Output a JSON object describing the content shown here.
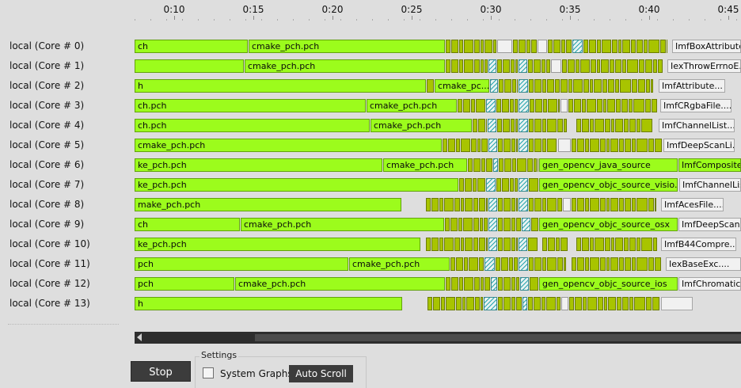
{
  "timeline": {
    "ticks": [
      "0:10",
      "0:15",
      "0:20",
      "0:25",
      "0:30",
      "0:35",
      "0:40",
      "0:45"
    ],
    "lanes": [
      {
        "label": "local (Core # 0)",
        "segments": [
          {
            "k": "big",
            "s": 0,
            "e": 143,
            "t": "ch"
          },
          {
            "k": "big",
            "s": 144,
            "e": 392,
            "t": "cmake_pch.pch"
          },
          {
            "k": "med",
            "s": 393,
            "e": 457
          },
          {
            "k": "idle",
            "s": 458,
            "e": 477
          },
          {
            "k": "med",
            "s": 478,
            "e": 508
          },
          {
            "k": "idle",
            "s": 509,
            "e": 521
          },
          {
            "k": "med",
            "s": 522,
            "e": 552
          },
          {
            "k": "hatch",
            "s": 553,
            "e": 566
          },
          {
            "k": "med",
            "s": 567,
            "e": 673
          },
          {
            "k": "tail",
            "s": 679,
            "e": 766,
            "t": "ImfBoxAttribute..."
          }
        ]
      },
      {
        "label": "local (Core # 1)",
        "segments": [
          {
            "k": "big",
            "s": 0,
            "e": 138
          },
          {
            "k": "big",
            "s": 139,
            "e": 392,
            "t": "cmake_pch.pch"
          },
          {
            "k": "med",
            "s": 393,
            "e": 446
          },
          {
            "k": "hatch",
            "s": 447,
            "e": 457
          },
          {
            "k": "med",
            "s": 458,
            "e": 484
          },
          {
            "k": "hatch",
            "s": 485,
            "e": 496
          },
          {
            "k": "med",
            "s": 497,
            "e": 525
          },
          {
            "k": "idle",
            "s": 526,
            "e": 539
          },
          {
            "k": "med",
            "s": 540,
            "e": 667
          },
          {
            "k": "tail",
            "s": 673,
            "e": 766,
            "t": "IexThrowErrnoE..."
          }
        ]
      },
      {
        "label": "local (Core # 2)",
        "segments": [
          {
            "k": "big",
            "s": 0,
            "e": 368,
            "t": "h"
          },
          {
            "k": "med",
            "s": 369,
            "e": 378
          },
          {
            "k": "big",
            "s": 379,
            "e": 448,
            "t": "cmake_pc..."
          },
          {
            "k": "hatch",
            "s": 449,
            "e": 459
          },
          {
            "k": "med",
            "s": 460,
            "e": 484
          },
          {
            "k": "hatch",
            "s": 485,
            "e": 497
          },
          {
            "k": "med",
            "s": 498,
            "e": 530
          },
          {
            "k": "med",
            "s": 531,
            "e": 655
          },
          {
            "k": "tail",
            "s": 662,
            "e": 746,
            "t": "ImfAttribute..."
          }
        ]
      },
      {
        "label": "local (Core # 3)",
        "segments": [
          {
            "k": "big",
            "s": 0,
            "e": 292,
            "t": "ch.pch"
          },
          {
            "k": "big",
            "s": 293,
            "e": 407,
            "t": "cmake_pch.pch"
          },
          {
            "k": "med",
            "s": 408,
            "e": 443
          },
          {
            "k": "hatch",
            "s": 444,
            "e": 456
          },
          {
            "k": "med",
            "s": 457,
            "e": 484
          },
          {
            "k": "hatch",
            "s": 485,
            "e": 498
          },
          {
            "k": "med",
            "s": 499,
            "e": 537
          },
          {
            "k": "idle",
            "s": 538,
            "e": 547
          },
          {
            "k": "med",
            "s": 548,
            "e": 660
          },
          {
            "k": "tail",
            "s": 664,
            "e": 754,
            "t": "ImfCRgbaFile...."
          }
        ]
      },
      {
        "label": "local (Core # 4)",
        "segments": [
          {
            "k": "big",
            "s": 0,
            "e": 297,
            "t": "ch.pch"
          },
          {
            "k": "big",
            "s": 298,
            "e": 426,
            "t": "cmake_pch.pch"
          },
          {
            "k": "med",
            "s": 427,
            "e": 445
          },
          {
            "k": "hatch",
            "s": 446,
            "e": 457
          },
          {
            "k": "med",
            "s": 458,
            "e": 484
          },
          {
            "k": "hatch",
            "s": 485,
            "e": 497
          },
          {
            "k": "med",
            "s": 498,
            "e": 547
          },
          {
            "k": "med",
            "s": 558,
            "e": 655
          },
          {
            "k": "tail",
            "s": 662,
            "e": 758,
            "t": "ImfChannelList...."
          }
        ]
      },
      {
        "label": "local (Core # 5)",
        "segments": [
          {
            "k": "big",
            "s": 0,
            "e": 388,
            "t": "cmake_pch.pch"
          },
          {
            "k": "med",
            "s": 389,
            "e": 446
          },
          {
            "k": "hatch",
            "s": 447,
            "e": 458
          },
          {
            "k": "med",
            "s": 459,
            "e": 484
          },
          {
            "k": "hatch",
            "s": 485,
            "e": 497
          },
          {
            "k": "med",
            "s": 498,
            "e": 534
          },
          {
            "k": "idle",
            "s": 535,
            "e": 551
          },
          {
            "k": "med",
            "s": 552,
            "e": 666
          },
          {
            "k": "tail",
            "s": 668,
            "e": 758,
            "t": "ImfDeepScanLi..."
          }
        ]
      },
      {
        "label": "local (Core # 6)",
        "segments": [
          {
            "k": "big",
            "s": 0,
            "e": 313,
            "t": "ke_pch.pch"
          },
          {
            "k": "big",
            "s": 314,
            "e": 420,
            "t": "cmake_pch.pch"
          },
          {
            "k": "med",
            "s": 421,
            "e": 452
          },
          {
            "k": "hatch",
            "s": 453,
            "e": 459
          },
          {
            "k": "med",
            "s": 460,
            "e": 510
          },
          {
            "k": "big",
            "s": 511,
            "e": 686,
            "t": "gen_opencv_java_source"
          },
          {
            "k": "big",
            "s": 687,
            "e": 766,
            "t": "ImfComposite"
          }
        ]
      },
      {
        "label": "local (Core # 7)",
        "segments": [
          {
            "k": "big",
            "s": 0,
            "e": 409,
            "t": "ke_pch.pch"
          },
          {
            "k": "med",
            "s": 410,
            "e": 443
          },
          {
            "k": "hatch",
            "s": 444,
            "e": 456
          },
          {
            "k": "med",
            "s": 457,
            "e": 484
          },
          {
            "k": "hatch",
            "s": 485,
            "e": 497
          },
          {
            "k": "med",
            "s": 498,
            "e": 510
          },
          {
            "k": "big",
            "s": 511,
            "e": 686,
            "t": "gen_opencv_objc_source_visio..."
          },
          {
            "k": "tail",
            "s": 688,
            "e": 766,
            "t": "ImfChannelLis"
          }
        ]
      },
      {
        "label": "local (Core # 8)",
        "segments": [
          {
            "k": "big",
            "s": 0,
            "e": 337,
            "t": "make_pch.pch"
          },
          {
            "k": "med",
            "s": 368,
            "e": 446
          },
          {
            "k": "hatch",
            "s": 447,
            "e": 458
          },
          {
            "k": "med",
            "s": 459,
            "e": 484
          },
          {
            "k": "hatch",
            "s": 485,
            "e": 497
          },
          {
            "k": "med",
            "s": 498,
            "e": 540
          },
          {
            "k": "idle",
            "s": 541,
            "e": 551
          },
          {
            "k": "med",
            "s": 552,
            "e": 659
          },
          {
            "k": "tail",
            "s": 665,
            "e": 744,
            "t": "ImfAcesFile...."
          }
        ]
      },
      {
        "label": "local (Core # 9)",
        "segments": [
          {
            "k": "big",
            "s": 0,
            "e": 133,
            "t": "ch"
          },
          {
            "k": "big",
            "s": 134,
            "e": 391,
            "t": "cmake_pch.pch"
          },
          {
            "k": "med",
            "s": 392,
            "e": 446
          },
          {
            "k": "hatch",
            "s": 447,
            "e": 458
          },
          {
            "k": "med",
            "s": 459,
            "e": 488
          },
          {
            "k": "hatch",
            "s": 489,
            "e": 500
          },
          {
            "k": "med",
            "s": 501,
            "e": 510
          },
          {
            "k": "big",
            "s": 511,
            "e": 686,
            "t": "gen_opencv_objc_source_osx"
          },
          {
            "k": "tail",
            "s": 687,
            "e": 766,
            "t": "ImfDeepScanL"
          }
        ]
      },
      {
        "label": "local (Core # 10)",
        "segments": [
          {
            "k": "big",
            "s": 0,
            "e": 361,
            "t": "ke_pch.pch"
          },
          {
            "k": "med",
            "s": 368,
            "e": 446
          },
          {
            "k": "hatch",
            "s": 447,
            "e": 458
          },
          {
            "k": "med",
            "s": 459,
            "e": 484
          },
          {
            "k": "hatch",
            "s": 485,
            "e": 496
          },
          {
            "k": "med",
            "s": 497,
            "e": 509
          },
          {
            "k": "med",
            "s": 515,
            "e": 547
          },
          {
            "k": "med",
            "s": 558,
            "e": 660
          },
          {
            "k": "tail",
            "s": 665,
            "e": 760,
            "t": "ImfB44Compre..."
          }
        ]
      },
      {
        "label": "local (Core # 11)",
        "segments": [
          {
            "k": "big",
            "s": 0,
            "e": 270,
            "t": "pch"
          },
          {
            "k": "big",
            "s": 271,
            "e": 398,
            "t": "cmake_pch.pch"
          },
          {
            "k": "med",
            "s": 399,
            "e": 441
          },
          {
            "k": "hatch",
            "s": 442,
            "e": 455
          },
          {
            "k": "med",
            "s": 456,
            "e": 484
          },
          {
            "k": "hatch",
            "s": 485,
            "e": 497
          },
          {
            "k": "med",
            "s": 498,
            "e": 545
          },
          {
            "k": "med",
            "s": 552,
            "e": 665
          },
          {
            "k": "tail",
            "s": 671,
            "e": 766,
            "t": "IexBaseExc...."
          }
        ]
      },
      {
        "label": "local (Core # 12)",
        "segments": [
          {
            "k": "big",
            "s": 0,
            "e": 126,
            "t": "pch"
          },
          {
            "k": "big",
            "s": 127,
            "e": 392,
            "t": "cmake_pch.pch"
          },
          {
            "k": "med",
            "s": 393,
            "e": 449
          },
          {
            "k": "hatch",
            "s": 450,
            "e": 458
          },
          {
            "k": "med",
            "s": 459,
            "e": 486
          },
          {
            "k": "hatch",
            "s": 487,
            "e": 498
          },
          {
            "k": "med",
            "s": 499,
            "e": 510
          },
          {
            "k": "big",
            "s": 511,
            "e": 686,
            "t": "gen_opencv_objc_source_ios"
          },
          {
            "k": "tail",
            "s": 687,
            "e": 766,
            "t": "ImfChromatici"
          }
        ]
      },
      {
        "label": "local (Core # 13)",
        "segments": [
          {
            "k": "big",
            "s": 0,
            "e": 338,
            "t": "h"
          },
          {
            "k": "med",
            "s": 370,
            "e": 440
          },
          {
            "k": "hatch",
            "s": 441,
            "e": 458
          },
          {
            "k": "med",
            "s": 459,
            "e": 489
          },
          {
            "k": "hatch",
            "s": 490,
            "e": 496
          },
          {
            "k": "med",
            "s": 497,
            "e": 538
          },
          {
            "k": "idle",
            "s": 539,
            "e": 548
          },
          {
            "k": "med",
            "s": 549,
            "e": 664
          },
          {
            "k": "tail",
            "s": 665,
            "e": 705
          }
        ]
      }
    ]
  },
  "controls": {
    "stop_label": "Stop",
    "settings_title": "Settings",
    "system_graphs_label": "System Graphs",
    "system_graphs_checked": false,
    "auto_scroll_label": "Auto Scroll"
  }
}
